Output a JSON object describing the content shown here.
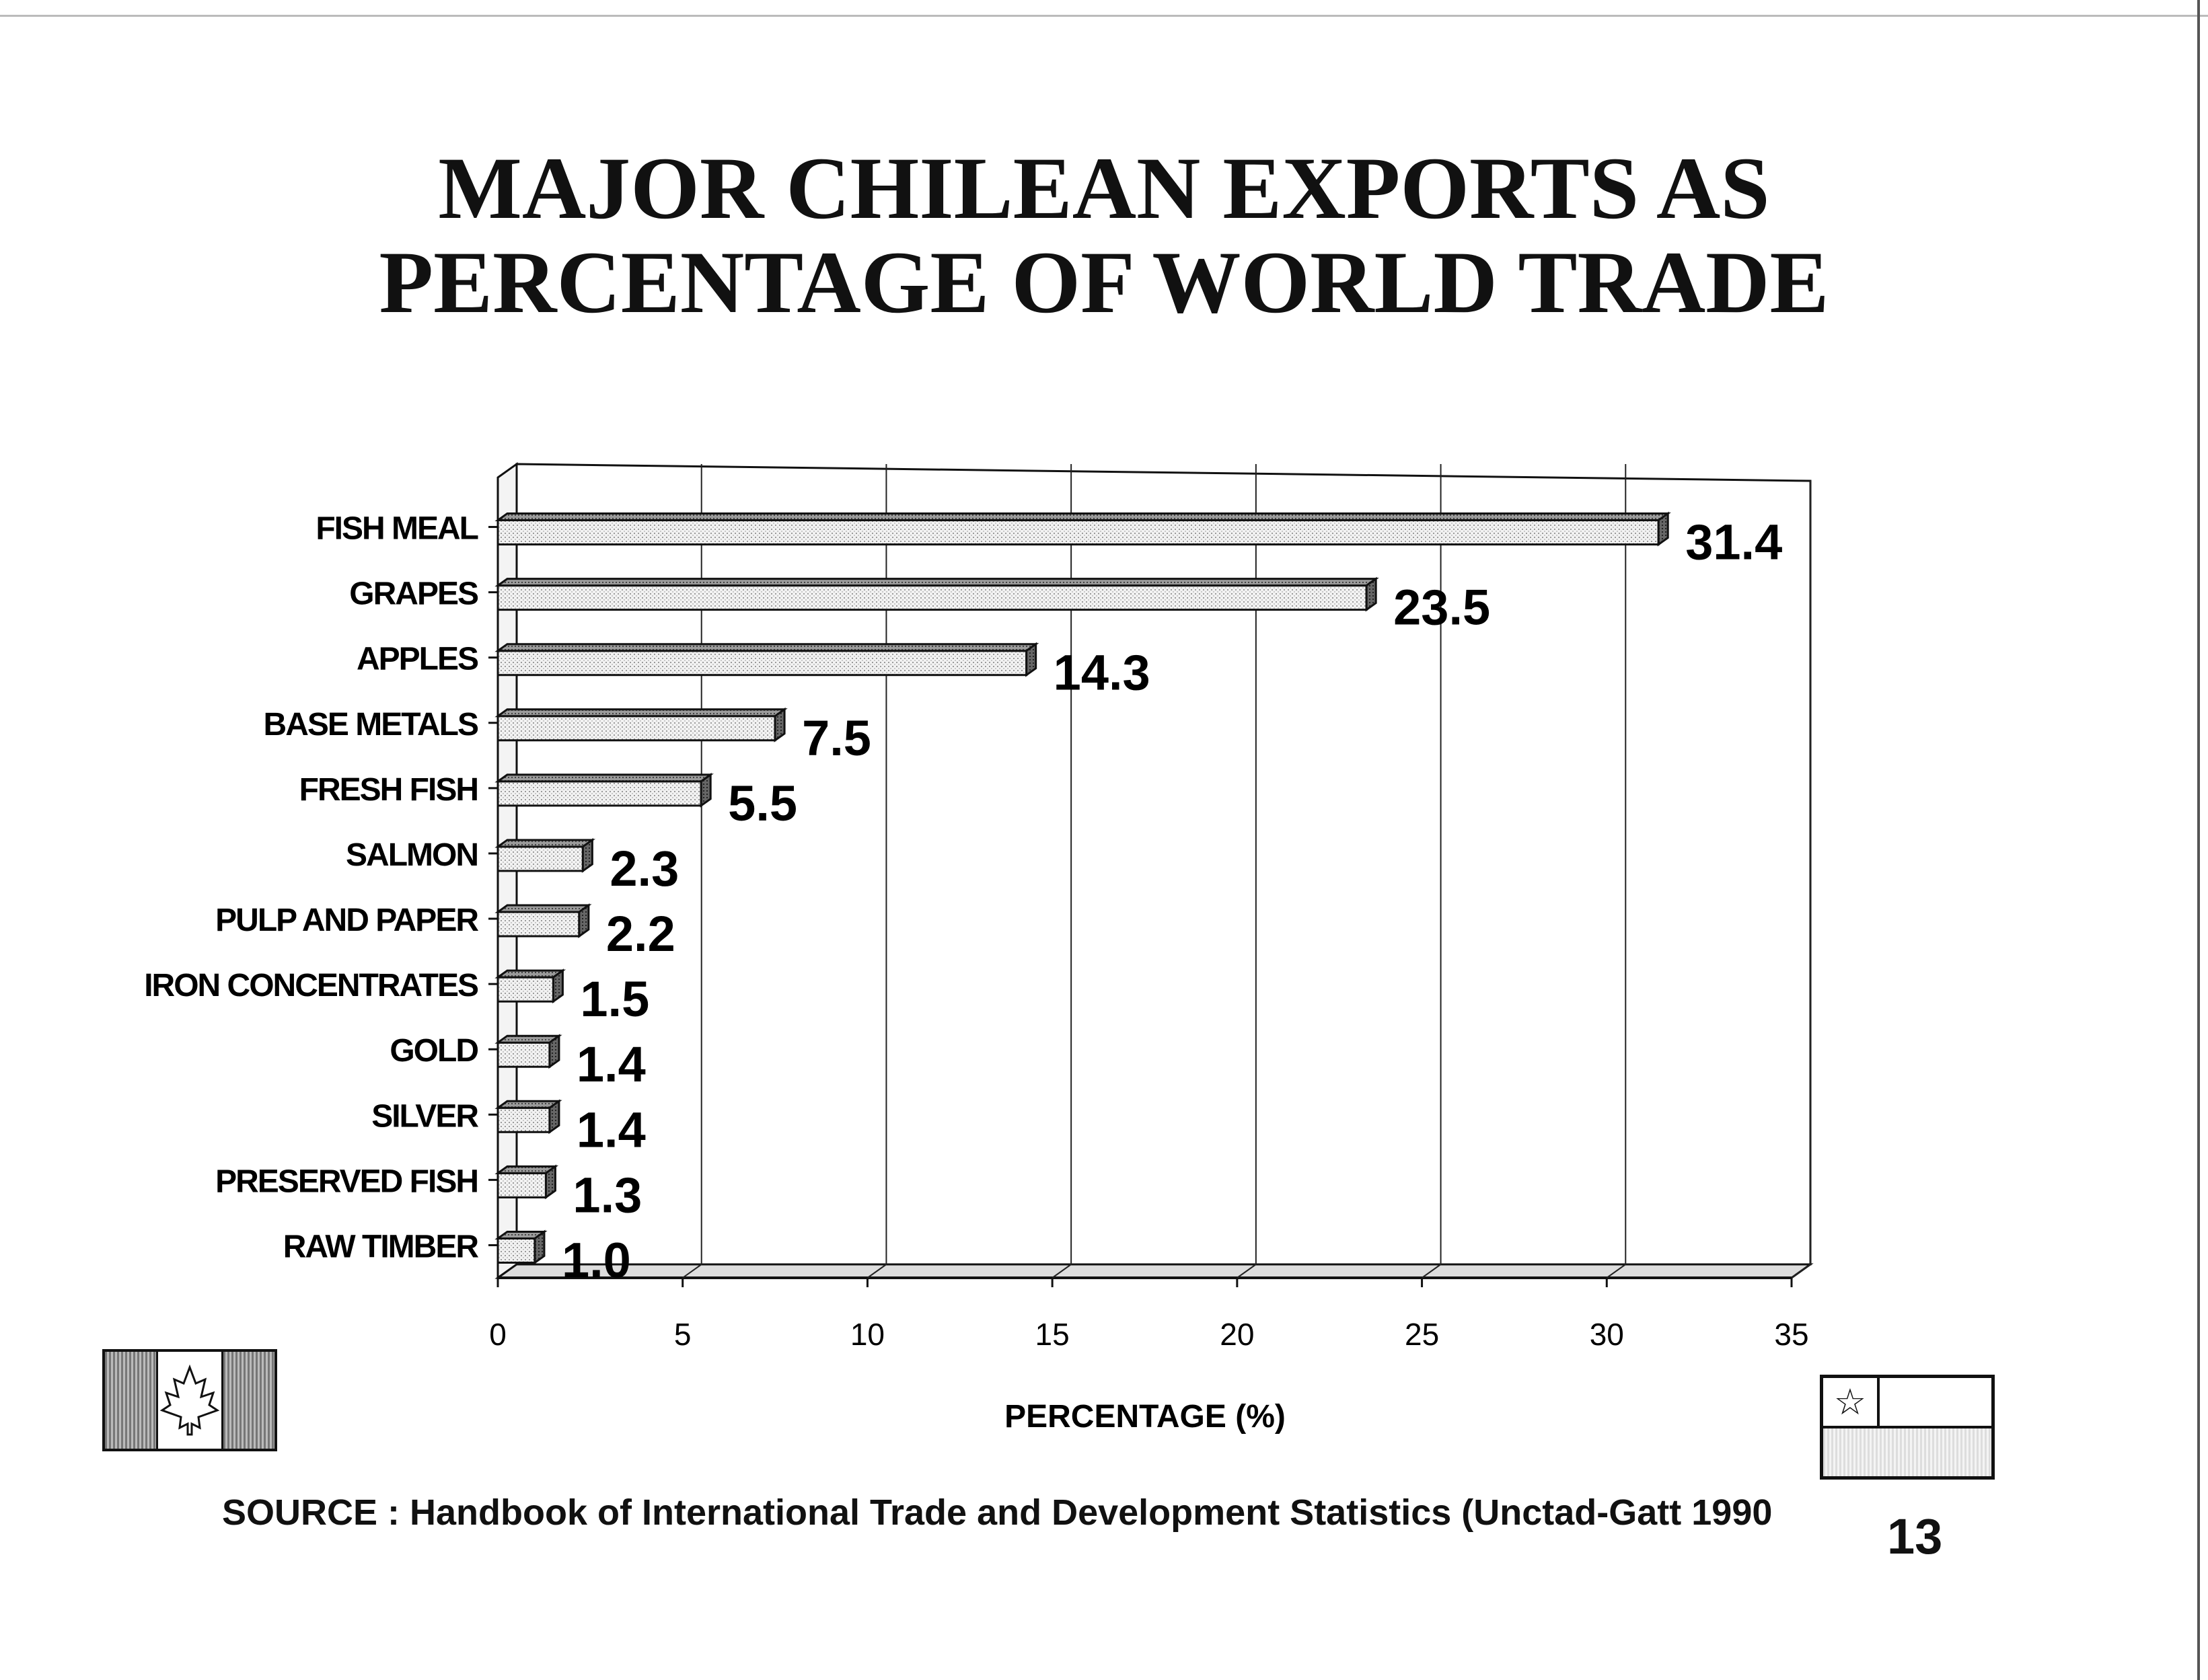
{
  "title_line1": "MAJOR CHILEAN EXPORTS AS",
  "title_line2": "PERCENTAGE OF WORLD TRADE",
  "source": "SOURCE : Handbook of International Trade and Development Statistics (Unctad-Gatt 1990",
  "page_number": "13",
  "icons": {
    "left_flag": "canada-flag-icon",
    "right_flag": "chile-flag-icon"
  },
  "chart_data": {
    "type": "bar",
    "orientation": "horizontal",
    "title": "MAJOR CHILEAN EXPORTS AS PERCENTAGE OF WORLD TRADE",
    "xlabel": "PERCENTAGE (%)",
    "ylabel": "",
    "categories": [
      "FISH MEAL",
      "GRAPES",
      "APPLES",
      "BASE METALS",
      "FRESH FISH",
      "SALMON",
      "PULP AND PAPER",
      "IRON CONCENTRATES",
      "GOLD",
      "SILVER",
      "PRESERVED FISH",
      "RAW TIMBER"
    ],
    "values": [
      31.4,
      23.5,
      14.3,
      7.5,
      5.5,
      2.3,
      2.2,
      1.5,
      1.4,
      1.4,
      1.3,
      1.0
    ],
    "value_labels": [
      "31.4",
      "23.5",
      "14.3",
      "7.5",
      "5.5",
      "2.3",
      "2.2",
      "1.5",
      "1.4",
      "1.4",
      "1.3",
      "1.0"
    ],
    "xlim": [
      0,
      35
    ],
    "xticks": [
      0,
      5,
      10,
      15,
      20,
      25,
      30,
      35
    ],
    "grid": true,
    "legend": false
  }
}
